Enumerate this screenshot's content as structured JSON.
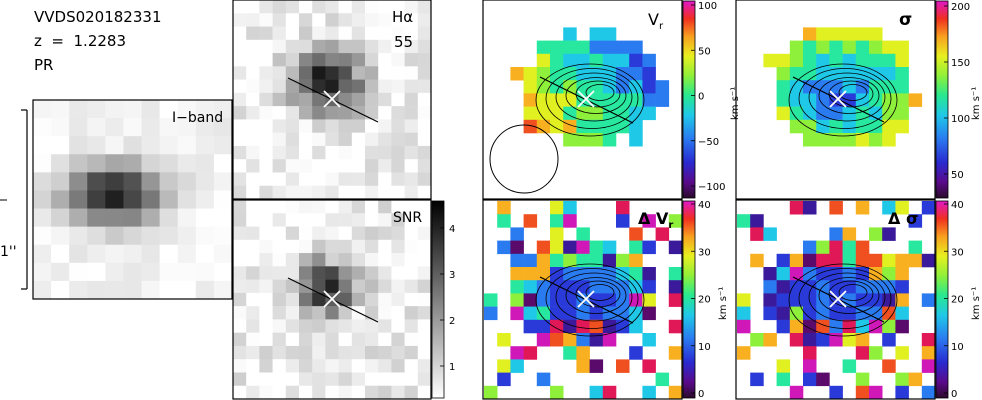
{
  "object": {
    "id": "VVDS020182331",
    "redshift": "z  =  1.2283",
    "class": "PR"
  },
  "scale_bar_label": "1''",
  "panels": {
    "iband": {
      "label": "I−band"
    },
    "halpha": {
      "label": "Hα",
      "value": "55"
    },
    "snr": {
      "label": "SNR",
      "colorbar_ticks": [
        "4",
        "3",
        "2",
        "1"
      ]
    },
    "vr": {
      "label": "V",
      "label_sub": "r",
      "colorbar_ticks": [
        "100",
        "50",
        "0",
        "−50",
        "−100"
      ],
      "colorbar_unit": "km s⁻¹"
    },
    "sigma": {
      "label": "σ",
      "colorbar_ticks": [
        "200",
        "150",
        "100",
        "50"
      ],
      "colorbar_unit": "km s⁻¹"
    },
    "dvr": {
      "label": "Δ V",
      "label_sub": "r",
      "colorbar_ticks": [
        "40",
        "30",
        "20",
        "10",
        "0"
      ],
      "colorbar_unit": "km s⁻¹"
    },
    "dsigma": {
      "label": "Δ σ",
      "colorbar_ticks": [
        "40",
        "30",
        "20",
        "10",
        "0"
      ],
      "colorbar_unit": "km s⁻¹"
    }
  },
  "colors": {
    "map_rainbow": [
      "#5a0a6a",
      "#3a1a9a",
      "#2a3ad8",
      "#2a7af0",
      "#20c8e8",
      "#28e8a0",
      "#8ef03a",
      "#e0f020",
      "#f8b020",
      "#f05020",
      "#e01858",
      "#d018b8"
    ]
  }
}
